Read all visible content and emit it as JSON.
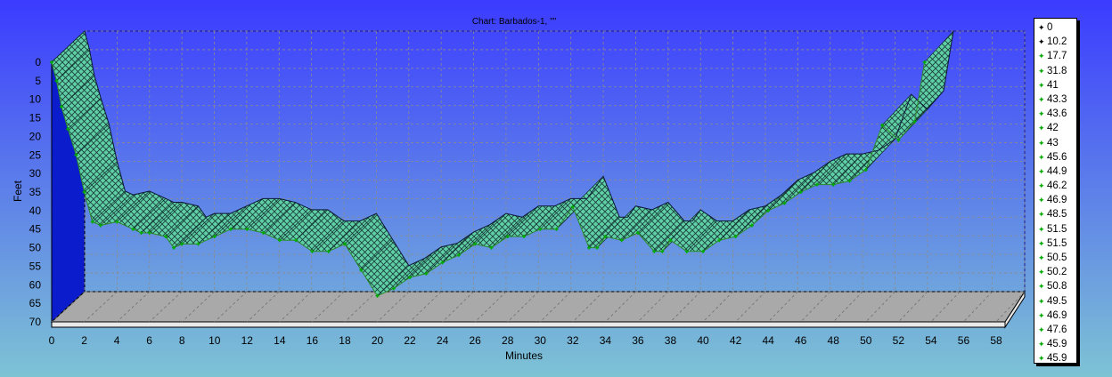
{
  "colors": {
    "bg_top": "#3b3bff",
    "bg_bottom": "#7ec3d4",
    "series_fill": "#5fd0a6",
    "series_line": "#2e8b2e",
    "marker": "#00aa00",
    "floor": "#a9a9a9",
    "left_wall": "#0a1ccc"
  },
  "chart_data": {
    "type": "area",
    "title": "Chart: Barbados-1, \"\"",
    "xlabel": "Minutes",
    "ylabel": "Feet",
    "xlim": [
      0,
      58
    ],
    "ylim": [
      0,
      70
    ],
    "y_inverted": true,
    "grid": true,
    "legend_position": "right",
    "x_ticks": [
      "0",
      "2",
      "4",
      "6",
      "8",
      "10",
      "12",
      "14",
      "16",
      "18",
      "20",
      "22",
      "24",
      "26",
      "28",
      "30",
      "32",
      "34",
      "36",
      "38",
      "40",
      "42",
      "44",
      "46",
      "48",
      "50",
      "52",
      "54",
      "56",
      "58"
    ],
    "y_ticks": [
      "0",
      "5",
      "10",
      "15",
      "20",
      "25",
      "30",
      "35",
      "40",
      "45",
      "50",
      "55",
      "60",
      "65",
      "70"
    ],
    "series": [
      {
        "x": [
          0,
          0.3,
          0.6,
          1,
          1.5,
          2,
          2.5,
          3,
          4,
          5,
          5.5,
          6,
          7,
          7.5,
          8,
          9,
          10,
          11,
          12,
          13,
          14,
          15,
          16,
          17,
          18,
          19,
          20,
          21,
          22,
          23,
          24,
          25,
          26,
          27,
          28,
          29,
          30,
          31,
          32,
          33,
          33.5,
          34,
          35,
          36,
          37,
          37.5,
          38,
          39,
          40,
          41,
          42,
          43,
          44,
          45,
          46,
          47,
          48,
          49,
          50,
          51,
          52,
          53,
          53.6
        ],
        "values": [
          0,
          5,
          12,
          18,
          25,
          35,
          43,
          44,
          43,
          45,
          46,
          46,
          47,
          50,
          49,
          49,
          47,
          45,
          45,
          46,
          48,
          48,
          51,
          51,
          49,
          56,
          63,
          61,
          58,
          57,
          54,
          52,
          49,
          50,
          47,
          47,
          45,
          45,
          39,
          50,
          50,
          47,
          48,
          46,
          51,
          51,
          48,
          51,
          51,
          48,
          47,
          44,
          40,
          38,
          35,
          33,
          33,
          32,
          29,
          17,
          21,
          16,
          0
        ]
      }
    ],
    "legend_entries": [
      "0",
      "10.2",
      "17.7",
      "31.8",
      "41",
      "43.3",
      "43.6",
      "42",
      "43",
      "45.6",
      "44.9",
      "46.2",
      "46.9",
      "48.5",
      "51.5",
      "51.5",
      "50.5",
      "50.2",
      "50.8",
      "49.5",
      "46.9",
      "47.6",
      "45.9",
      "45.9"
    ]
  }
}
